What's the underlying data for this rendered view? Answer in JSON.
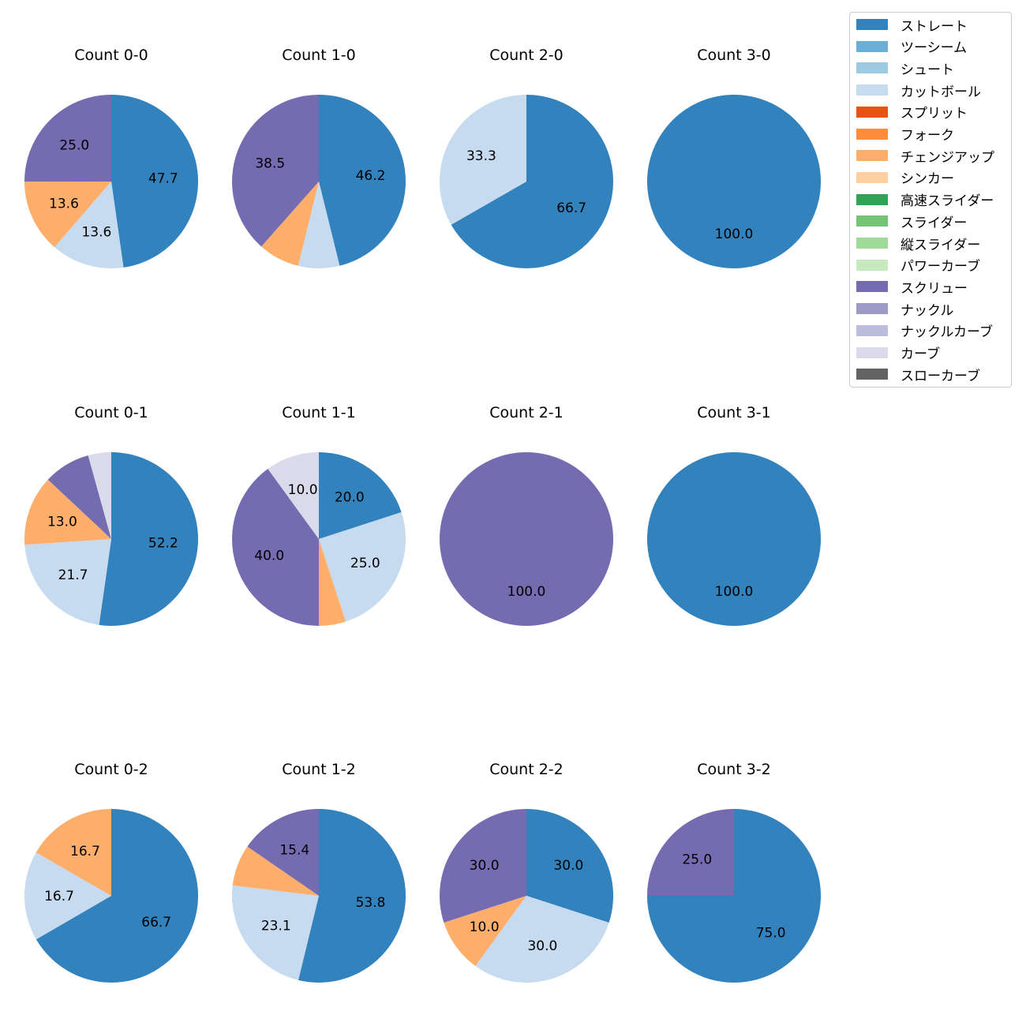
{
  "colors": {
    "ストレート": "#3182bd",
    "ツーシーム": "#6baed6",
    "シュート": "#9ecae1",
    "カットボール": "#c6dbef",
    "スプリット": "#e6550d",
    "フォーク": "#fd8d3c",
    "チェンジアップ": "#fdae6b",
    "シンカー": "#fdd0a2",
    "高速スライダー": "#31a354",
    "スライダー": "#74c476",
    "縦スライダー": "#a1d99b",
    "パワーカーブ": "#c7e9c0",
    "スクリュー": "#756bb1",
    "ナックル": "#9e9ac8",
    "ナックルカーブ": "#bcbddc",
    "カーブ": "#dadaeb",
    "スローカーブ": "#636363"
  },
  "legend": [
    "ストレート",
    "ツーシーム",
    "シュート",
    "カットボール",
    "スプリット",
    "フォーク",
    "チェンジアップ",
    "シンカー",
    "高速スライダー",
    "スライダー",
    "縦スライダー",
    "パワーカーブ",
    "スクリュー",
    "ナックル",
    "ナックルカーブ",
    "カーブ",
    "スローカーブ"
  ],
  "chart_data": [
    {
      "type": "pie",
      "title": "Count 0-0",
      "slices": [
        {
          "label": "ストレート",
          "value": 47.7
        },
        {
          "label": "カットボール",
          "value": 13.6
        },
        {
          "label": "チェンジアップ",
          "value": 13.6
        },
        {
          "label": "スクリュー",
          "value": 25.0
        }
      ]
    },
    {
      "type": "pie",
      "title": "Count 1-0",
      "slices": [
        {
          "label": "ストレート",
          "value": 46.2
        },
        {
          "label": "カットボール",
          "value": 7.7
        },
        {
          "label": "チェンジアップ",
          "value": 7.7
        },
        {
          "label": "スクリュー",
          "value": 38.5
        }
      ]
    },
    {
      "type": "pie",
      "title": "Count 2-0",
      "slices": [
        {
          "label": "ストレート",
          "value": 66.7
        },
        {
          "label": "カットボール",
          "value": 33.3
        }
      ]
    },
    {
      "type": "pie",
      "title": "Count 3-0",
      "slices": [
        {
          "label": "ストレート",
          "value": 100.0
        }
      ]
    },
    {
      "type": "pie",
      "title": "Count 0-1",
      "slices": [
        {
          "label": "ストレート",
          "value": 52.2
        },
        {
          "label": "カットボール",
          "value": 21.7
        },
        {
          "label": "チェンジアップ",
          "value": 13.0
        },
        {
          "label": "スクリュー",
          "value": 8.7
        },
        {
          "label": "カーブ",
          "value": 4.3
        }
      ]
    },
    {
      "type": "pie",
      "title": "Count 1-1",
      "slices": [
        {
          "label": "ストレート",
          "value": 20.0
        },
        {
          "label": "カットボール",
          "value": 25.0
        },
        {
          "label": "チェンジアップ",
          "value": 5.0
        },
        {
          "label": "スクリュー",
          "value": 40.0
        },
        {
          "label": "カーブ",
          "value": 10.0
        }
      ]
    },
    {
      "type": "pie",
      "title": "Count 2-1",
      "slices": [
        {
          "label": "スクリュー",
          "value": 100.0
        }
      ]
    },
    {
      "type": "pie",
      "title": "Count 3-1",
      "slices": [
        {
          "label": "ストレート",
          "value": 100.0
        }
      ]
    },
    {
      "type": "pie",
      "title": "Count 0-2",
      "slices": [
        {
          "label": "ストレート",
          "value": 66.7
        },
        {
          "label": "カットボール",
          "value": 16.7
        },
        {
          "label": "チェンジアップ",
          "value": 16.7
        }
      ]
    },
    {
      "type": "pie",
      "title": "Count 1-2",
      "slices": [
        {
          "label": "ストレート",
          "value": 53.8
        },
        {
          "label": "カットボール",
          "value": 23.1
        },
        {
          "label": "チェンジアップ",
          "value": 7.7
        },
        {
          "label": "スクリュー",
          "value": 15.4
        }
      ]
    },
    {
      "type": "pie",
      "title": "Count 2-2",
      "slices": [
        {
          "label": "ストレート",
          "value": 30.0
        },
        {
          "label": "カットボール",
          "value": 30.0
        },
        {
          "label": "チェンジアップ",
          "value": 10.0
        },
        {
          "label": "スクリュー",
          "value": 30.0
        }
      ]
    },
    {
      "type": "pie",
      "title": "Count 3-2",
      "slices": [
        {
          "label": "ストレート",
          "value": 75.0
        },
        {
          "label": "スクリュー",
          "value": 25.0
        }
      ]
    }
  ]
}
